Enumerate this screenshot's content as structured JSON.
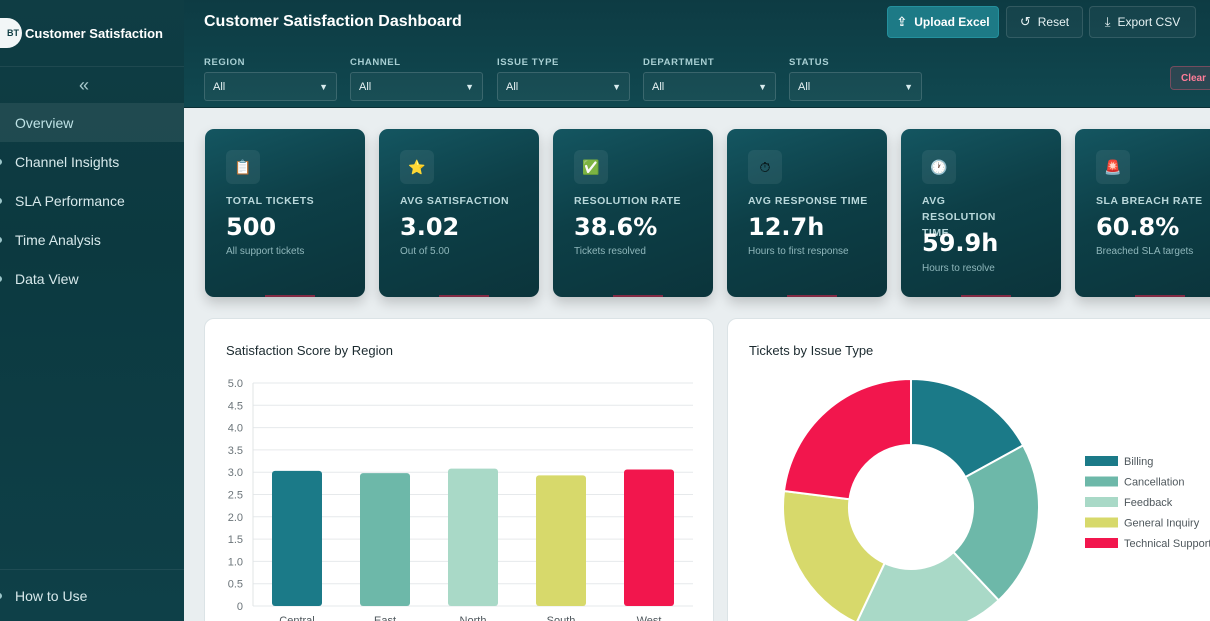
{
  "app": {
    "logo_text": "BT",
    "title": "Customer Satisfaction"
  },
  "sidebar": {
    "collapse_icon": "«",
    "items": [
      {
        "label": "Overview",
        "active": true
      },
      {
        "label": "Channel Insights"
      },
      {
        "label": "SLA Performance"
      },
      {
        "label": "Time Analysis"
      },
      {
        "label": "Data View"
      }
    ],
    "footer_item": "How to Use"
  },
  "header": {
    "title": "Customer Satisfaction Dashboard",
    "upload_label": "Upload Excel",
    "reset_label": "Reset",
    "export_label": "Export CSV",
    "clear_label": "Clear"
  },
  "filters": [
    {
      "label": "REGION",
      "value": "All"
    },
    {
      "label": "CHANNEL",
      "value": "All"
    },
    {
      "label": "ISSUE TYPE",
      "value": "All"
    },
    {
      "label": "DEPARTMENT",
      "value": "All"
    },
    {
      "label": "STATUS",
      "value": "All"
    }
  ],
  "kpis": [
    {
      "icon": "clipboard-icon",
      "glyph": "📋",
      "label": "TOTAL TICKETS",
      "value": "500",
      "sub": "All support tickets"
    },
    {
      "icon": "star-icon",
      "glyph": "⭐",
      "label": "AVG SATISFACTION",
      "value": "3.02",
      "sub": "Out of 5.00"
    },
    {
      "icon": "check-icon",
      "glyph": "✅",
      "label": "RESOLUTION RATE",
      "value": "38.6%",
      "sub": "Tickets resolved"
    },
    {
      "icon": "stopwatch-icon",
      "glyph": "⏱",
      "label": "AVG RESPONSE TIME",
      "value": "12.7h",
      "sub": "Hours to first response"
    },
    {
      "icon": "clock-icon",
      "glyph": "🕐",
      "label": "AVG RESOLUTION TIME",
      "value": "59.9h",
      "sub": "Hours to resolve"
    },
    {
      "icon": "siren-icon",
      "glyph": "🚨",
      "label": "SLA BREACH RATE",
      "value": "60.8%",
      "sub": "Breached SLA targets"
    }
  ],
  "colors": {
    "teal_dark": "#1b7a88",
    "teal_mid": "#6db8a9",
    "teal_light": "#a9d9c7",
    "yellow": "#d7d96b",
    "pink": "#f2164d"
  },
  "chart_data": [
    {
      "type": "bar",
      "title": "Satisfaction Score by Region",
      "categories": [
        "Central",
        "East",
        "North",
        "South",
        "West"
      ],
      "values": [
        3.03,
        2.98,
        3.08,
        2.93,
        3.06
      ],
      "colors": [
        "#1b7a88",
        "#6db8a9",
        "#a9d9c7",
        "#d7d96b",
        "#f2164d"
      ],
      "yticks": [
        "0",
        "0.5",
        "1.0",
        "1.5",
        "2.0",
        "2.5",
        "3.0",
        "3.5",
        "4.0",
        "4.5",
        "5.0"
      ],
      "ylim": [
        0,
        5
      ],
      "grid": true
    },
    {
      "type": "pie",
      "title": "Tickets by Issue Type",
      "labels": [
        "Billing",
        "Cancellation",
        "Feedback",
        "General Inquiry",
        "Technical Support"
      ],
      "values": [
        17,
        21,
        19,
        20,
        23
      ],
      "colors": [
        "#1b7a88",
        "#6db8a9",
        "#a9d9c7",
        "#d7d96b",
        "#f2164d"
      ],
      "legend": "right"
    }
  ]
}
